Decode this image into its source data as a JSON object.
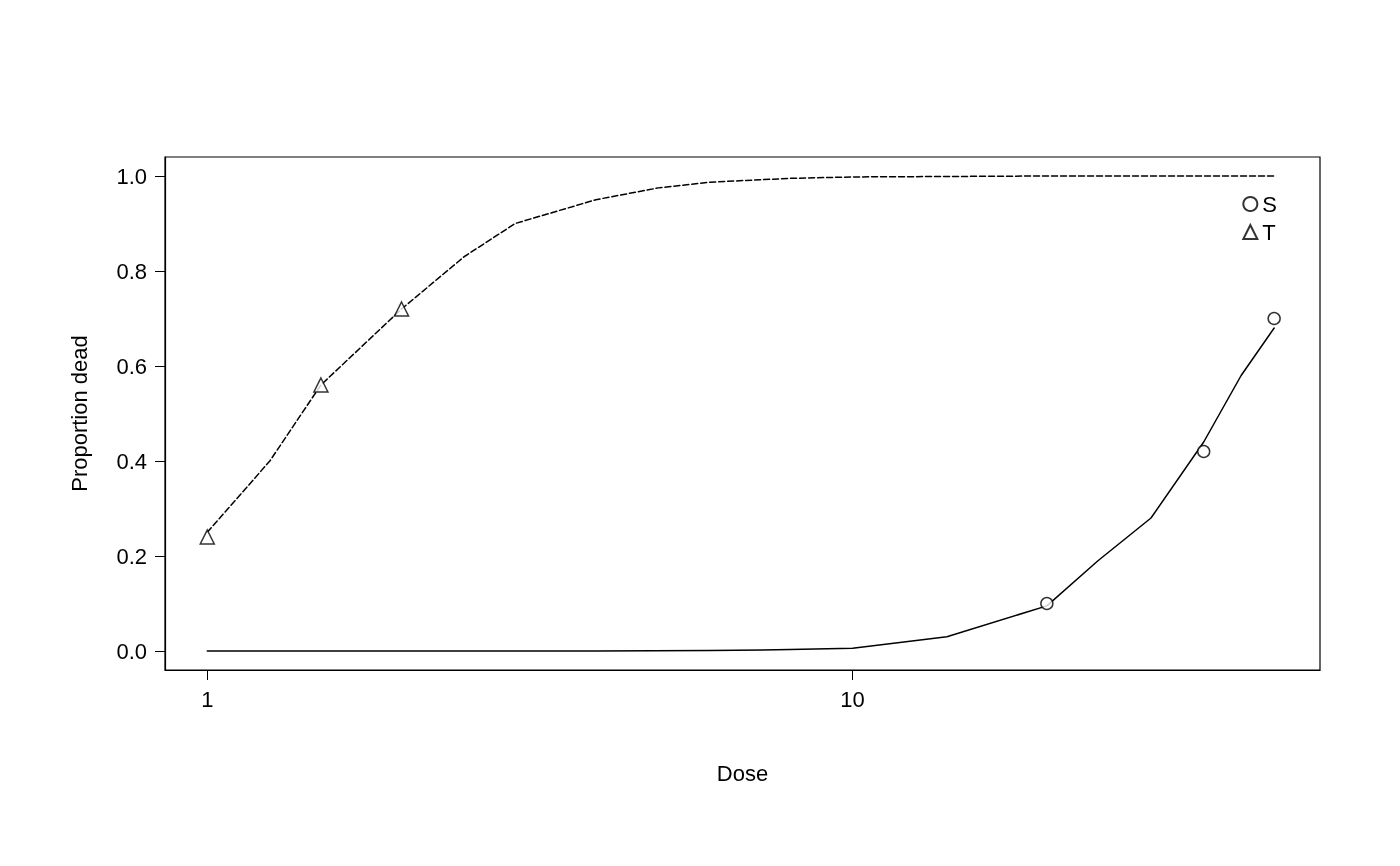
{
  "chart_data": {
    "type": "line",
    "xlabel": "Dose",
    "ylabel": "Proportion dead",
    "log": "x",
    "xlim": [
      0.86,
      53
    ],
    "xticks": [
      1,
      10
    ],
    "ylim": [
      -0.04,
      1.04
    ],
    "yticks": [
      {
        "value": 0,
        "label": "0.0"
      },
      {
        "value": 0.2,
        "label": "0.2"
      },
      {
        "value": 0.4,
        "label": "0.4"
      },
      {
        "value": 0.6,
        "label": "0.6"
      },
      {
        "value": 0.8,
        "label": "0.8"
      },
      {
        "value": 1,
        "label": "1.0"
      }
    ],
    "grid": false,
    "legend": "top right",
    "series": [
      {
        "name": "S",
        "type": "scatter",
        "marker": "circle",
        "color": "#000000",
        "x": [
          20,
          35,
          45
        ],
        "values": [
          0.1,
          0.42,
          0.7
        ]
      },
      {
        "name": "T",
        "type": "scatter",
        "marker": "triangle",
        "color": "#000000",
        "x": [
          1,
          1.5,
          2
        ],
        "values": [
          0.24,
          0.56,
          0.72
        ]
      },
      {
        "marker": "none",
        "line_style": "solid",
        "color": "#000000",
        "x": [
          1,
          2,
          4,
          6,
          8,
          10,
          14,
          20,
          24,
          29,
          35,
          40,
          45
        ],
        "values": [
          0,
          0,
          0,
          0.001,
          0.003,
          0.006,
          0.03,
          0.095,
          0.19,
          0.28,
          0.44,
          0.58,
          0.68
        ]
      },
      {
        "marker": "none",
        "line_style": "dashed",
        "color": "#000000",
        "x": [
          1,
          1.25,
          1.5,
          2,
          2.5,
          3,
          4,
          5,
          6,
          8,
          10,
          20,
          45
        ],
        "values": [
          0.25,
          0.4,
          0.56,
          0.72,
          0.83,
          0.9,
          0.95,
          0.975,
          0.987,
          0.995,
          0.998,
          1,
          1
        ]
      }
    ]
  }
}
